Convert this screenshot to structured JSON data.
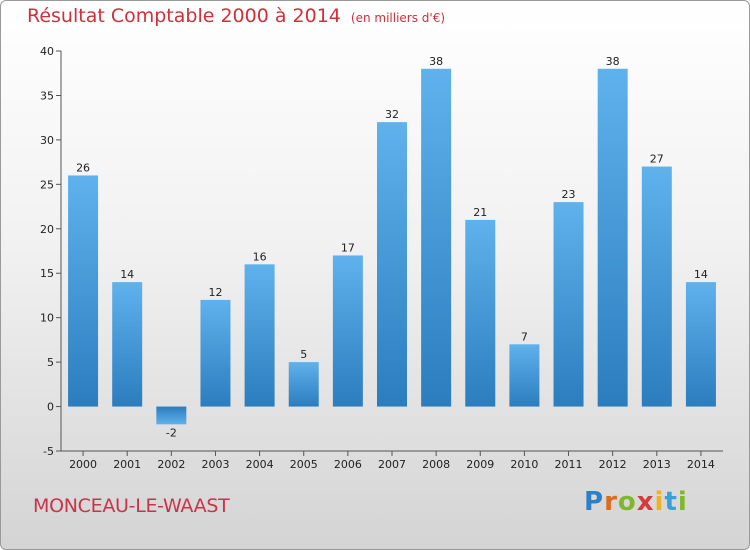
{
  "title": {
    "main": "Résultat Comptable 2000 à 2014",
    "unit": "(en milliers d'€)"
  },
  "town": "MONCEAU-LE-WAAST",
  "logo": [
    "P",
    "r",
    "o",
    "x",
    "i",
    "t",
    "i"
  ],
  "colors": {
    "bar_light": "#5eb0ea",
    "bar_dark": "#2a7fc1",
    "title": "#d0303a"
  },
  "chart_data": {
    "type": "bar",
    "categories": [
      "2000",
      "2001",
      "2002",
      "2003",
      "2004",
      "2005",
      "2006",
      "2007",
      "2008",
      "2009",
      "2010",
      "2011",
      "2012",
      "2013",
      "2014"
    ],
    "values": [
      26,
      14,
      -2,
      12,
      16,
      5,
      17,
      32,
      38,
      21,
      7,
      23,
      38,
      27,
      14
    ],
    "title": "Résultat Comptable 2000 à 2014",
    "xlabel": "",
    "ylabel": "",
    "ylim": [
      -5,
      40
    ],
    "yticks": [
      -5,
      0,
      5,
      10,
      15,
      20,
      25,
      30,
      35,
      40
    ],
    "grid": false,
    "legend": "none"
  }
}
